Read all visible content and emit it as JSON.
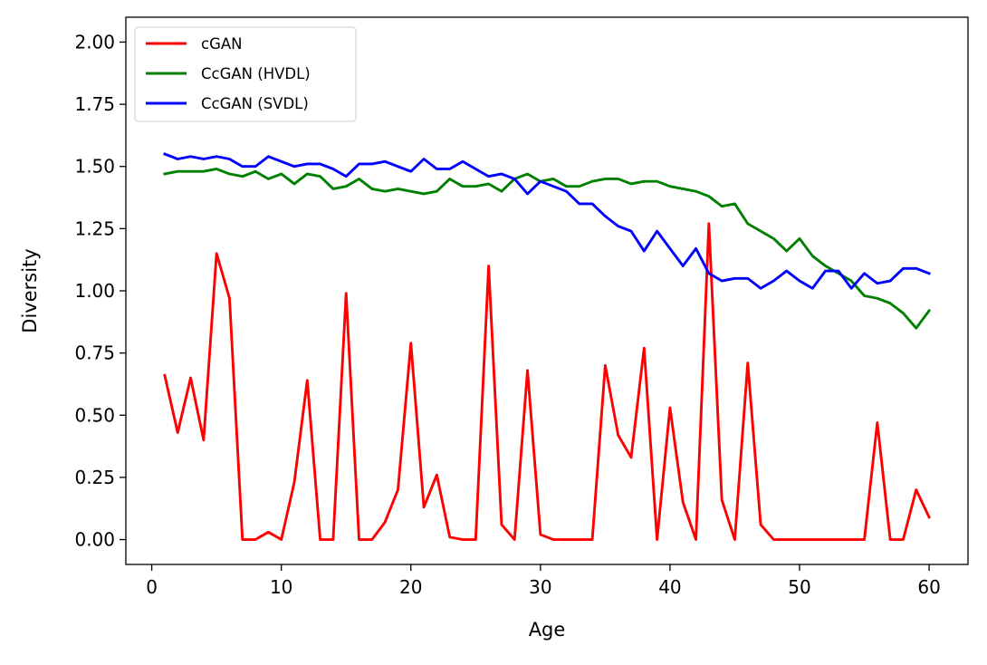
{
  "chart_data": {
    "type": "line",
    "title": "",
    "xlabel": "Age",
    "ylabel": "Diversity",
    "xlim": [
      -2,
      63
    ],
    "ylim": [
      -0.1,
      2.1
    ],
    "xticks": [
      0,
      10,
      20,
      30,
      40,
      50,
      60
    ],
    "yticks": [
      0.0,
      0.25,
      0.5,
      0.75,
      1.0,
      1.25,
      1.5,
      1.75,
      2.0
    ],
    "xtick_labels": [
      "0",
      "10",
      "20",
      "30",
      "40",
      "50",
      "60"
    ],
    "ytick_labels": [
      "0.00",
      "0.25",
      "0.50",
      "0.75",
      "1.00",
      "1.25",
      "1.50",
      "1.75",
      "2.00"
    ],
    "grid": false,
    "legend_position": "upper-left",
    "x": [
      1,
      2,
      3,
      4,
      5,
      6,
      7,
      8,
      9,
      10,
      11,
      12,
      13,
      14,
      15,
      16,
      17,
      18,
      19,
      20,
      21,
      22,
      23,
      24,
      25,
      26,
      27,
      28,
      29,
      30,
      31,
      32,
      33,
      34,
      35,
      36,
      37,
      38,
      39,
      40,
      41,
      42,
      43,
      44,
      45,
      46,
      47,
      48,
      49,
      50,
      51,
      52,
      53,
      54,
      55,
      56,
      57,
      58,
      59,
      60
    ],
    "series": [
      {
        "name": "cGAN",
        "color": "#ff0000",
        "values": [
          0.66,
          0.43,
          0.65,
          0.4,
          1.15,
          0.97,
          0.0,
          0.0,
          0.03,
          0.0,
          0.23,
          0.64,
          0.0,
          0.0,
          0.99,
          0.0,
          0.0,
          0.07,
          0.2,
          0.79,
          0.13,
          0.26,
          0.01,
          0.0,
          0.0,
          1.1,
          0.06,
          0.0,
          0.68,
          0.02,
          0.0,
          0.0,
          0.0,
          0.0,
          0.7,
          0.42,
          0.33,
          0.77,
          0.0,
          0.53,
          0.15,
          0.0,
          1.27,
          0.16,
          0.0,
          0.71,
          0.06,
          0.0,
          0.0,
          0.0,
          0.0,
          0.0,
          0.0,
          0.0,
          0.0,
          0.47,
          0.0,
          0.0,
          0.2,
          0.09
        ]
      },
      {
        "name": "CcGAN (HVDL)",
        "color": "#008000",
        "values": [
          1.47,
          1.48,
          1.48,
          1.48,
          1.49,
          1.47,
          1.46,
          1.48,
          1.45,
          1.47,
          1.43,
          1.47,
          1.46,
          1.41,
          1.42,
          1.45,
          1.41,
          1.4,
          1.41,
          1.4,
          1.39,
          1.4,
          1.45,
          1.42,
          1.42,
          1.43,
          1.4,
          1.45,
          1.47,
          1.44,
          1.45,
          1.42,
          1.42,
          1.44,
          1.45,
          1.45,
          1.43,
          1.44,
          1.44,
          1.42,
          1.41,
          1.4,
          1.38,
          1.34,
          1.35,
          1.27,
          1.24,
          1.21,
          1.16,
          1.21,
          1.14,
          1.1,
          1.07,
          1.04,
          0.98,
          0.97,
          0.95,
          0.91,
          0.85,
          0.92
        ]
      },
      {
        "name": "CcGAN (SVDL)",
        "color": "#0000ff",
        "values": [
          1.55,
          1.53,
          1.54,
          1.53,
          1.54,
          1.53,
          1.5,
          1.5,
          1.54,
          1.52,
          1.5,
          1.51,
          1.51,
          1.49,
          1.46,
          1.51,
          1.51,
          1.52,
          1.5,
          1.48,
          1.53,
          1.49,
          1.49,
          1.52,
          1.49,
          1.46,
          1.47,
          1.45,
          1.39,
          1.44,
          1.42,
          1.4,
          1.35,
          1.35,
          1.3,
          1.26,
          1.24,
          1.16,
          1.24,
          1.17,
          1.1,
          1.17,
          1.07,
          1.04,
          1.05,
          1.05,
          1.01,
          1.04,
          1.08,
          1.04,
          1.01,
          1.08,
          1.08,
          1.01,
          1.07,
          1.03,
          1.04,
          1.09,
          1.09,
          1.07
        ]
      }
    ]
  }
}
